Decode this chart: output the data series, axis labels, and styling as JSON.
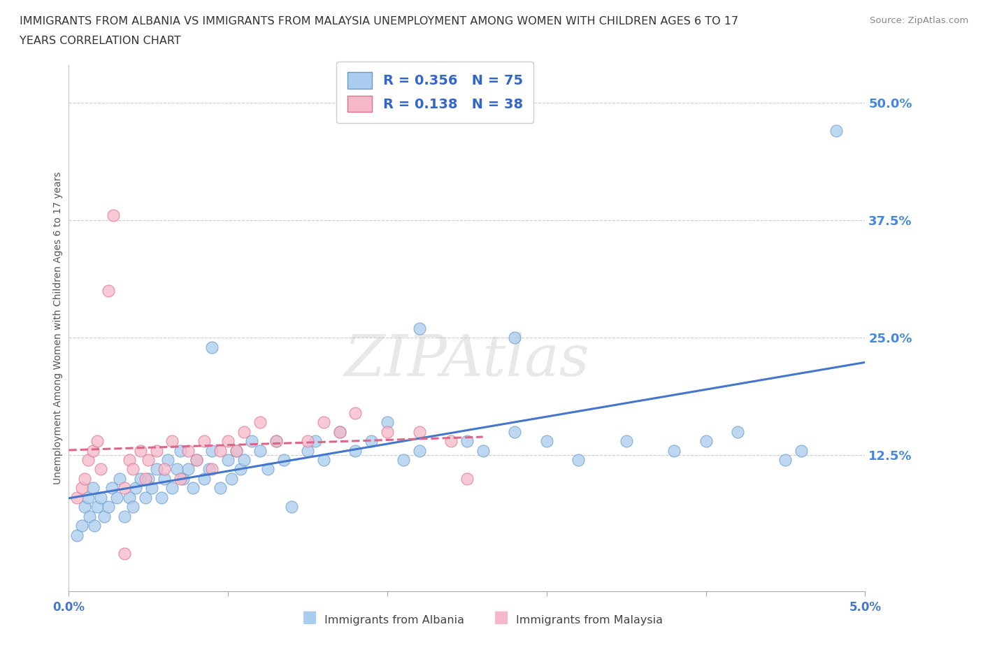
{
  "title_line1": "IMMIGRANTS FROM ALBANIA VS IMMIGRANTS FROM MALAYSIA UNEMPLOYMENT AMONG WOMEN WITH CHILDREN AGES 6 TO 17",
  "title_line2": "YEARS CORRELATION CHART",
  "source": "Source: ZipAtlas.com",
  "ylabel": "Unemployment Among Women with Children Ages 6 to 17 years",
  "xlim": [
    0.0,
    5.0
  ],
  "ylim": [
    -2.0,
    54.0
  ],
  "ytick_vals": [
    0.0,
    12.5,
    25.0,
    37.5,
    50.0
  ],
  "ytick_labels": [
    "",
    "12.5%",
    "25.0%",
    "37.5%",
    "50.0%"
  ],
  "albania_R": 0.356,
  "albania_N": 75,
  "malaysia_R": 0.138,
  "malaysia_N": 38,
  "albania_color": "#aaccee",
  "malaysia_color": "#f5b8c8",
  "albania_edge_color": "#6699cc",
  "malaysia_edge_color": "#e07090",
  "albania_line_color": "#4477cc",
  "malaysia_line_color": "#dd6688",
  "tick_label_color": "#4488dd",
  "watermark": "ZIPAtlas",
  "background": "#ffffff",
  "grid_color": "#cccccc",
  "title_color": "#333333",
  "legend_text_color": "#3366cc",
  "source_color": "#888888",
  "xlabel_color": "#4477cc",
  "bottom_legend_color": "#444444"
}
